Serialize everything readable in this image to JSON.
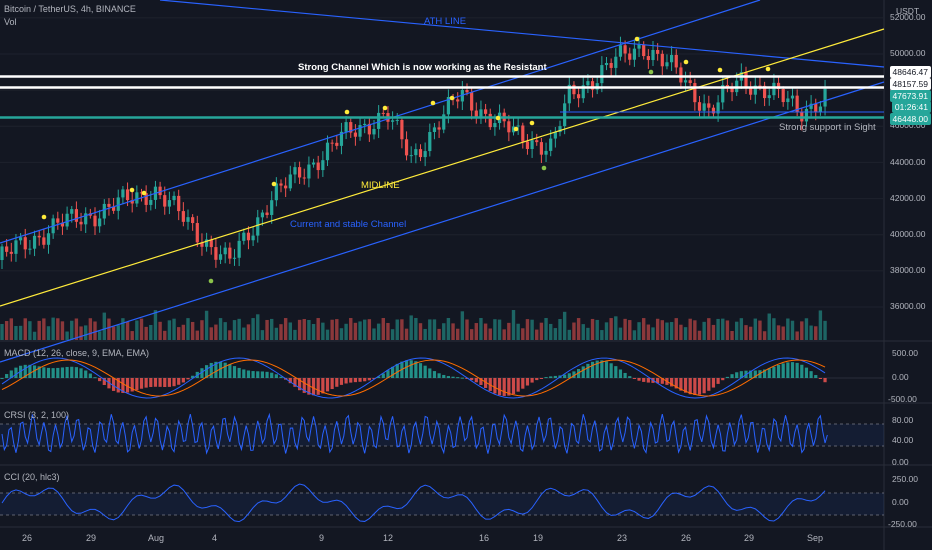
{
  "header": {
    "symbol_title": "Bitcoin / TetherUS, 4h, BINANCE",
    "vol_label": "Vol",
    "currency": "USDT"
  },
  "price_axis": {
    "labels": [
      "52000.00",
      "50000.00",
      "48000.00",
      "46000.00",
      "44000.00",
      "42000.00",
      "40000.00",
      "38000.00",
      "36000.00"
    ],
    "tags": [
      {
        "text": "48646.47",
        "bg": "#ffffff",
        "fg": "#131722"
      },
      {
        "text": "48157.59",
        "bg": "#ffffff",
        "fg": "#131722"
      },
      {
        "text": "47673.91",
        "bg": "#26a69a",
        "fg": "#ffffff"
      },
      {
        "text": "01:26:41",
        "bg": "#26a69a",
        "fg": "#ffffff"
      },
      {
        "text": "46448.00",
        "bg": "#26a69a",
        "fg": "#ffffff"
      }
    ]
  },
  "annotations": {
    "ath_line": "ATH LINE",
    "resistant": "Strong Channel Which is now working as the Resistant",
    "midline": "MIDLINE",
    "stable_channel": "Current and stable Channel",
    "support": "Strong support in Sight"
  },
  "indicators": {
    "macd": {
      "label": "MACD (12, 26, close, 9, EMA, EMA)",
      "axis": [
        "500.00",
        "0.00",
        "-500.00"
      ]
    },
    "crsi": {
      "label": "CRSI (3, 2, 100)",
      "axis": [
        "80.00",
        "40.00",
        "0.00"
      ]
    },
    "cci": {
      "label": "CCI (20, hlc3)",
      "axis": [
        "250.00",
        "0.00",
        "-250.00"
      ]
    }
  },
  "time_axis": [
    "26",
    "29",
    "Aug",
    "4",
    "9",
    "12",
    "16",
    "19",
    "23",
    "26",
    "29",
    "Sep"
  ],
  "colors": {
    "bg": "#131722",
    "up": "#26a69a",
    "down": "#ef5350",
    "channel": "#2962ff",
    "midline": "#ffeb3b",
    "resist": "#ffffff",
    "support": "#26a69a"
  }
}
